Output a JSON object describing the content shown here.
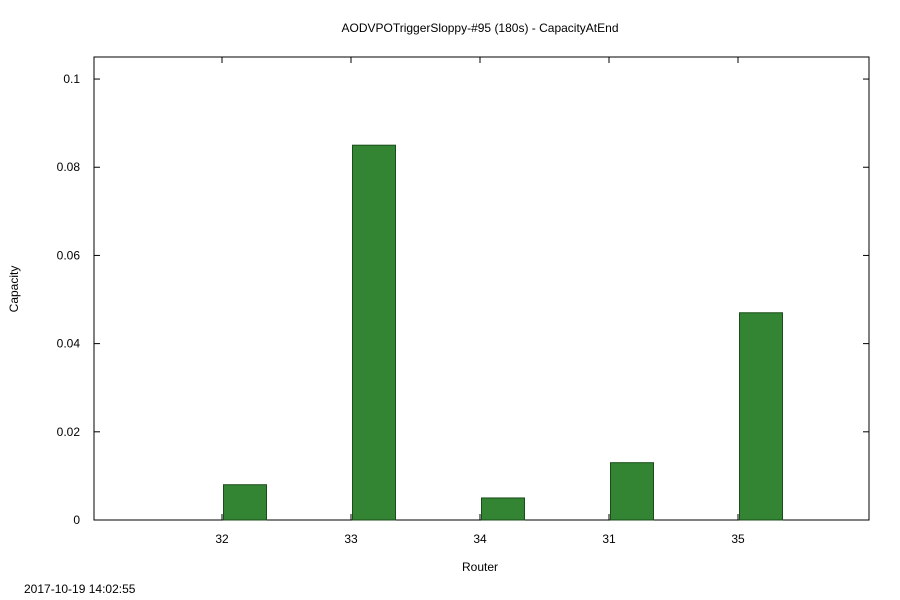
{
  "chart_data": {
    "type": "bar",
    "title": "AODVPOTriggerSloppy-#95 (180s) - CapacityAtEnd",
    "xlabel": "Router",
    "ylabel": "Capacity",
    "categories": [
      "32",
      "33",
      "34",
      "31",
      "35"
    ],
    "values": [
      0.008,
      0.085,
      0.005,
      0.013,
      0.047
    ],
    "ylim": [
      0,
      0.105
    ],
    "yticks": [
      0,
      0.02,
      0.04,
      0.06,
      0.08,
      0.1
    ],
    "ytick_labels": [
      "0",
      "0.02",
      "0.04",
      "0.06",
      "0.08",
      "0.1"
    ],
    "grid": false,
    "legend": "none",
    "bar_color": "#338533",
    "bar_edge_color": "#1a4d1a"
  },
  "footer": {
    "timestamp": "2017-10-19 14:02:55"
  }
}
